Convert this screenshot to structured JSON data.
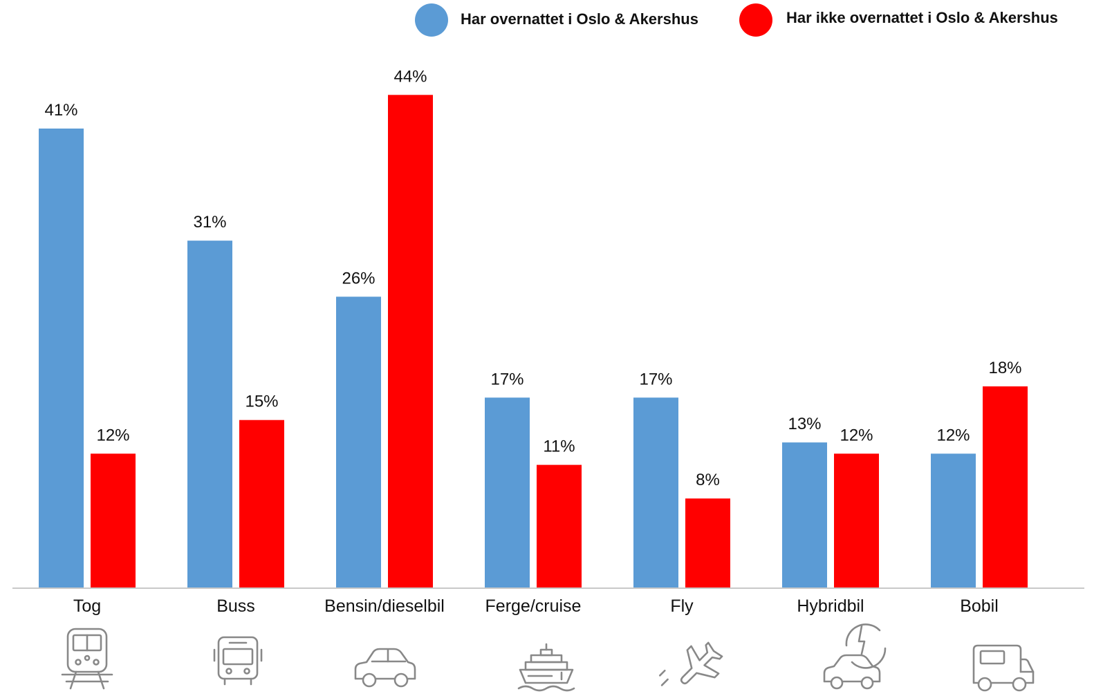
{
  "chart_data": {
    "type": "bar",
    "title": "",
    "xlabel": "",
    "ylabel": "",
    "ylim": [
      0,
      44
    ],
    "grid": false,
    "legend_position": "top-right",
    "categories": [
      "Tog",
      "Buss",
      "Bensin/dieselbil",
      "Ferge/cruise",
      "Fly",
      "Hybridbil",
      "Bobil"
    ],
    "series": [
      {
        "name": "Har overnattet i Oslo & Akershus",
        "color": "#5b9bd5",
        "values": [
          41,
          31,
          26,
          17,
          17,
          13,
          12
        ],
        "labels": [
          "41%",
          "31%",
          "26%",
          "17%",
          "17%",
          "13%",
          "12%"
        ]
      },
      {
        "name": "Har ikke overnattet i Oslo & Akershus",
        "color": "#ff0000",
        "values": [
          12,
          15,
          44,
          11,
          8,
          12,
          18
        ],
        "labels": [
          "12%",
          "15%",
          "44%",
          "11%",
          "8%",
          "12%",
          "18%"
        ]
      }
    ],
    "category_icons": [
      "train-icon",
      "bus-icon",
      "car-icon",
      "ship-icon",
      "airplane-icon",
      "hybrid-car-icon",
      "camper-van-icon"
    ]
  }
}
